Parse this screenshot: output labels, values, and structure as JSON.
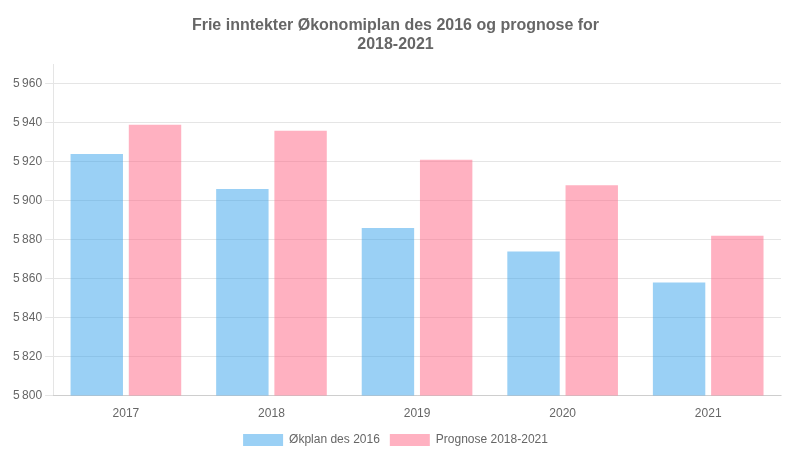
{
  "chart_data": {
    "type": "bar",
    "title": "Frie inntekter Økonomiplan des 2016 og prognose for\n2018-2021",
    "categories": [
      "2017",
      "2018",
      "2019",
      "2020",
      "2021"
    ],
    "series": [
      {
        "name": "Økplan des 2016",
        "values": [
          5924,
          5906,
          5886,
          5874,
          5858
        ]
      },
      {
        "name": "Prognose 2018-2021",
        "values": [
          5939,
          5936,
          5921,
          5908,
          5882
        ]
      }
    ],
    "ylim": [
      5800,
      5970
    ],
    "yticks": [
      {
        "value": 5800,
        "label": "5 800"
      },
      {
        "value": 5820,
        "label": "5 820"
      },
      {
        "value": 5840,
        "label": "5 840"
      },
      {
        "value": 5860,
        "label": "5 860"
      },
      {
        "value": 5880,
        "label": "5 880"
      },
      {
        "value": 5900,
        "label": "5 900"
      },
      {
        "value": 5920,
        "label": "5 920"
      },
      {
        "value": 5940,
        "label": "5 940"
      },
      {
        "value": 5960,
        "label": "5 960"
      }
    ],
    "grid": true,
    "legend": "bottom"
  }
}
